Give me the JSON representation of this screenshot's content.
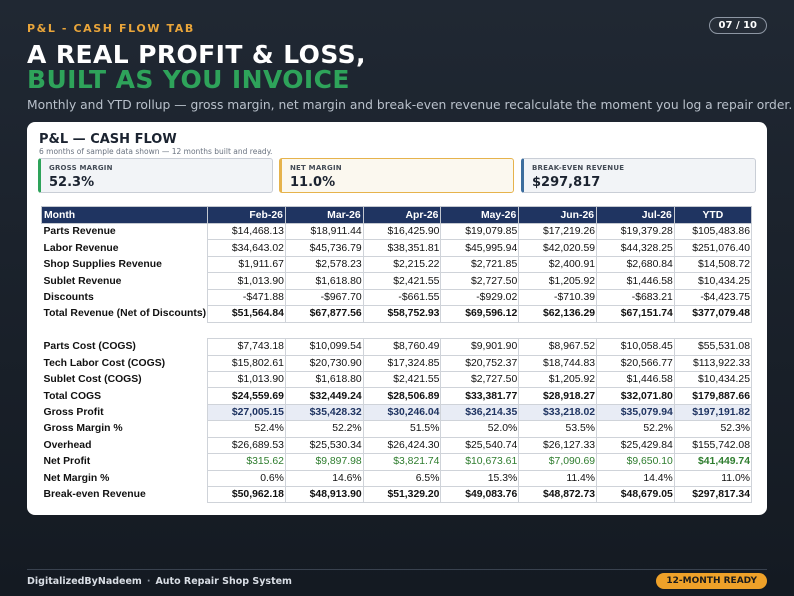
{
  "header": {
    "eyebrow": "P&L - CASH FLOW TAB",
    "page_indicator": "07 / 10",
    "title_line1": "A REAL PROFIT & LOSS,",
    "title_line2": "BUILT AS YOU INVOICE",
    "subtitle": "Monthly and YTD rollup — gross margin, net margin and break-even revenue recalculate the moment you log a repair order."
  },
  "card": {
    "title": "P&L — CASH FLOW",
    "note": "6 months of sample data shown — 12 months built and ready."
  },
  "kpis": [
    {
      "label": "GROSS MARGIN",
      "value": "52.3%"
    },
    {
      "label": "NET MARGIN",
      "value": "11.0%"
    },
    {
      "label": "BREAK-EVEN REVENUE",
      "value": "$297,817"
    }
  ],
  "table": {
    "headers": [
      "Month",
      "Feb-26",
      "Mar-26",
      "Apr-26",
      "May-26",
      "Jun-26",
      "Jul-26",
      "YTD"
    ],
    "rows": [
      {
        "label": "Parts Revenue",
        "values": [
          "$14,468.13",
          "$18,911.44",
          "$16,425.90",
          "$19,079.85",
          "$17,219.26",
          "$19,379.28",
          "$105,483.86"
        ]
      },
      {
        "label": "Labor Revenue",
        "values": [
          "$34,643.02",
          "$45,736.79",
          "$38,351.81",
          "$45,995.94",
          "$42,020.59",
          "$44,328.25",
          "$251,076.40"
        ]
      },
      {
        "label": "Shop Supplies Revenue",
        "values": [
          "$1,911.67",
          "$2,578.23",
          "$2,215.22",
          "$2,721.85",
          "$2,400.91",
          "$2,680.84",
          "$14,508.72"
        ]
      },
      {
        "label": "Sublet Revenue",
        "values": [
          "$1,013.90",
          "$1,618.80",
          "$2,421.55",
          "$2,727.50",
          "$1,205.92",
          "$1,446.58",
          "$10,434.25"
        ]
      },
      {
        "label": "Discounts",
        "values": [
          "-$471.88",
          "-$967.70",
          "-$661.55",
          "-$929.02",
          "-$710.39",
          "-$683.21",
          "-$4,423.75"
        ]
      },
      {
        "label": "Total Revenue (Net of Discounts)",
        "values": [
          "$51,564.84",
          "$67,877.56",
          "$58,752.93",
          "$69,596.12",
          "$62,136.29",
          "$67,151.74",
          "$377,079.48"
        ]
      },
      {
        "label": "Parts Cost (COGS)",
        "values": [
          "$7,743.18",
          "$10,099.54",
          "$8,760.49",
          "$9,901.90",
          "$8,967.52",
          "$10,058.45",
          "$55,531.08"
        ]
      },
      {
        "label": "Tech Labor Cost (COGS)",
        "values": [
          "$15,802.61",
          "$20,730.90",
          "$17,324.85",
          "$20,752.37",
          "$18,744.83",
          "$20,566.77",
          "$113,922.33"
        ]
      },
      {
        "label": "Sublet Cost (COGS)",
        "values": [
          "$1,013.90",
          "$1,618.80",
          "$2,421.55",
          "$2,727.50",
          "$1,205.92",
          "$1,446.58",
          "$10,434.25"
        ]
      },
      {
        "label": "Total COGS",
        "values": [
          "$24,559.69",
          "$32,449.24",
          "$28,506.89",
          "$33,381.77",
          "$28,918.27",
          "$32,071.80",
          "$179,887.66"
        ]
      },
      {
        "label": "Gross Profit",
        "values": [
          "$27,005.15",
          "$35,428.32",
          "$30,246.04",
          "$36,214.35",
          "$33,218.02",
          "$35,079.94",
          "$197,191.82"
        ]
      },
      {
        "label": "Gross Margin %",
        "values": [
          "52.4%",
          "52.2%",
          "51.5%",
          "52.0%",
          "53.5%",
          "52.2%",
          "52.3%"
        ]
      },
      {
        "label": "Overhead",
        "values": [
          "$26,689.53",
          "$25,530.34",
          "$26,424.30",
          "$25,540.74",
          "$26,127.33",
          "$25,429.84",
          "$155,742.08"
        ]
      },
      {
        "label": "Net Profit",
        "values": [
          "$315.62",
          "$9,897.98",
          "$3,821.74",
          "$10,673.61",
          "$7,090.69",
          "$9,650.10",
          "$41,449.74"
        ]
      },
      {
        "label": "Net Margin %",
        "values": [
          "0.6%",
          "14.6%",
          "6.5%",
          "15.3%",
          "11.4%",
          "14.4%",
          "11.0%"
        ]
      },
      {
        "label": "Break-even Revenue",
        "values": [
          "$50,962.18",
          "$48,913.90",
          "$51,329.20",
          "$49,083.76",
          "$48,872.73",
          "$48,679.05",
          "$297,817.34"
        ]
      }
    ]
  },
  "footer": {
    "brand": "DigitalizedByNadeem",
    "product": "Auto Repair Shop System",
    "badge": "12-MONTH READY"
  },
  "colors": {
    "accent_orange": "#e9a53a",
    "accent_green": "#2ea35a",
    "table_header_navy": "#1f3461"
  }
}
